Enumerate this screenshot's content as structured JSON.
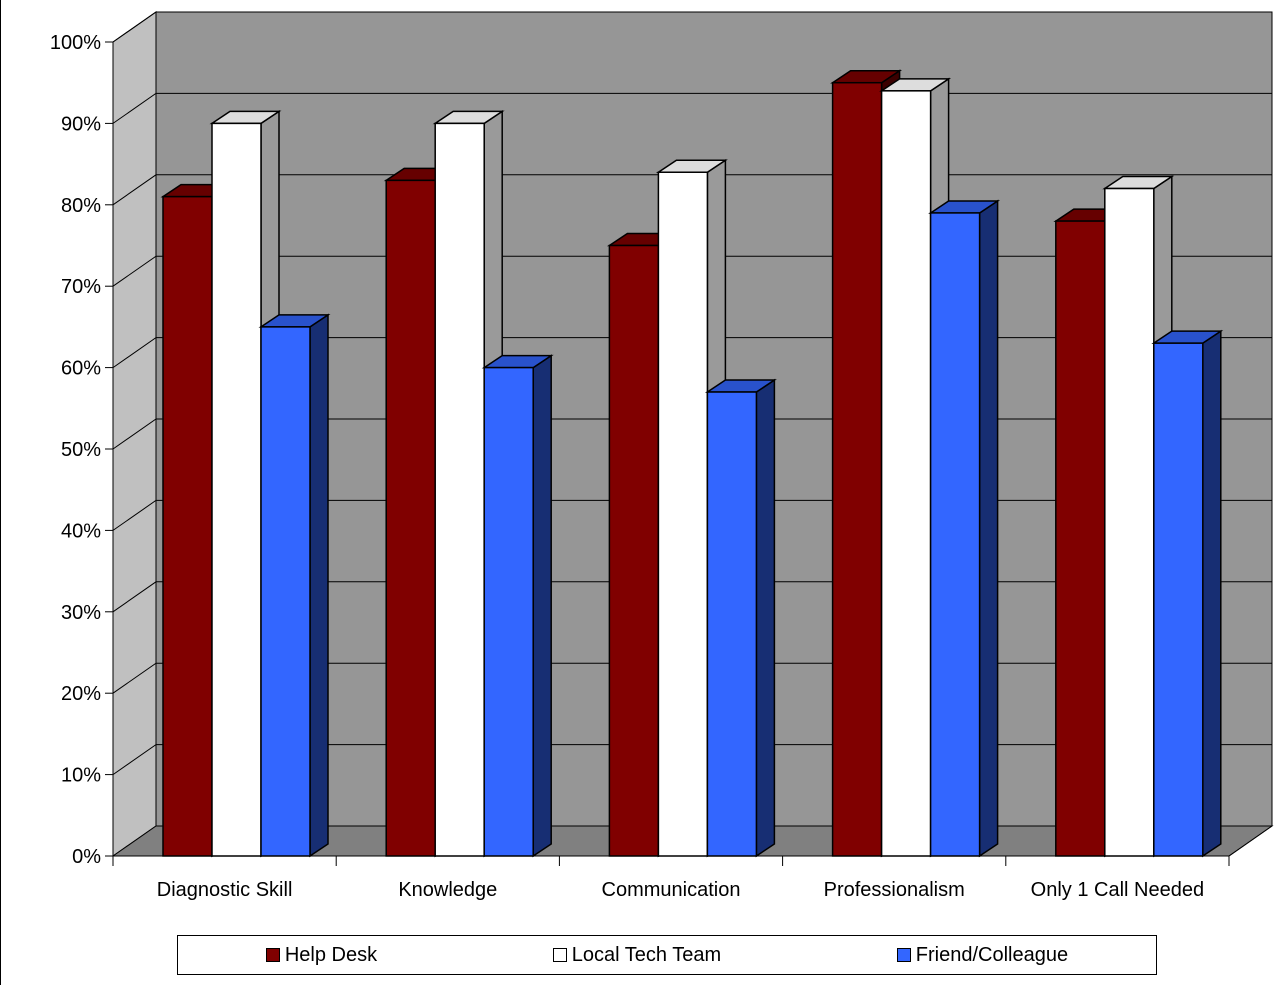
{
  "chart_data": {
    "type": "bar",
    "title": "",
    "xlabel": "",
    "ylabel": "",
    "categories": [
      "Diagnostic Skill",
      "Knowledge",
      "Communication",
      "Professionalism",
      "Only 1 Call Needed"
    ],
    "series": [
      {
        "name": "Help Desk",
        "values": [
          81,
          83,
          75,
          95,
          78
        ],
        "color": "#800000"
      },
      {
        "name": "Local Tech Team",
        "values": [
          90,
          90,
          84,
          94,
          82
        ],
        "color": "#ffffff"
      },
      {
        "name": "Friend/Colleague",
        "values": [
          65,
          60,
          57,
          79,
          63
        ],
        "color": "#3366ff"
      }
    ],
    "ylim": [
      0,
      100
    ],
    "yticks": [
      "0%",
      "10%",
      "20%",
      "30%",
      "40%",
      "50%",
      "60%",
      "70%",
      "80%",
      "90%",
      "100%"
    ],
    "grid": true,
    "legend_position": "bottom",
    "style": "3d-clustered-column",
    "wall_color": "#969696",
    "floor_color": "#808080"
  }
}
